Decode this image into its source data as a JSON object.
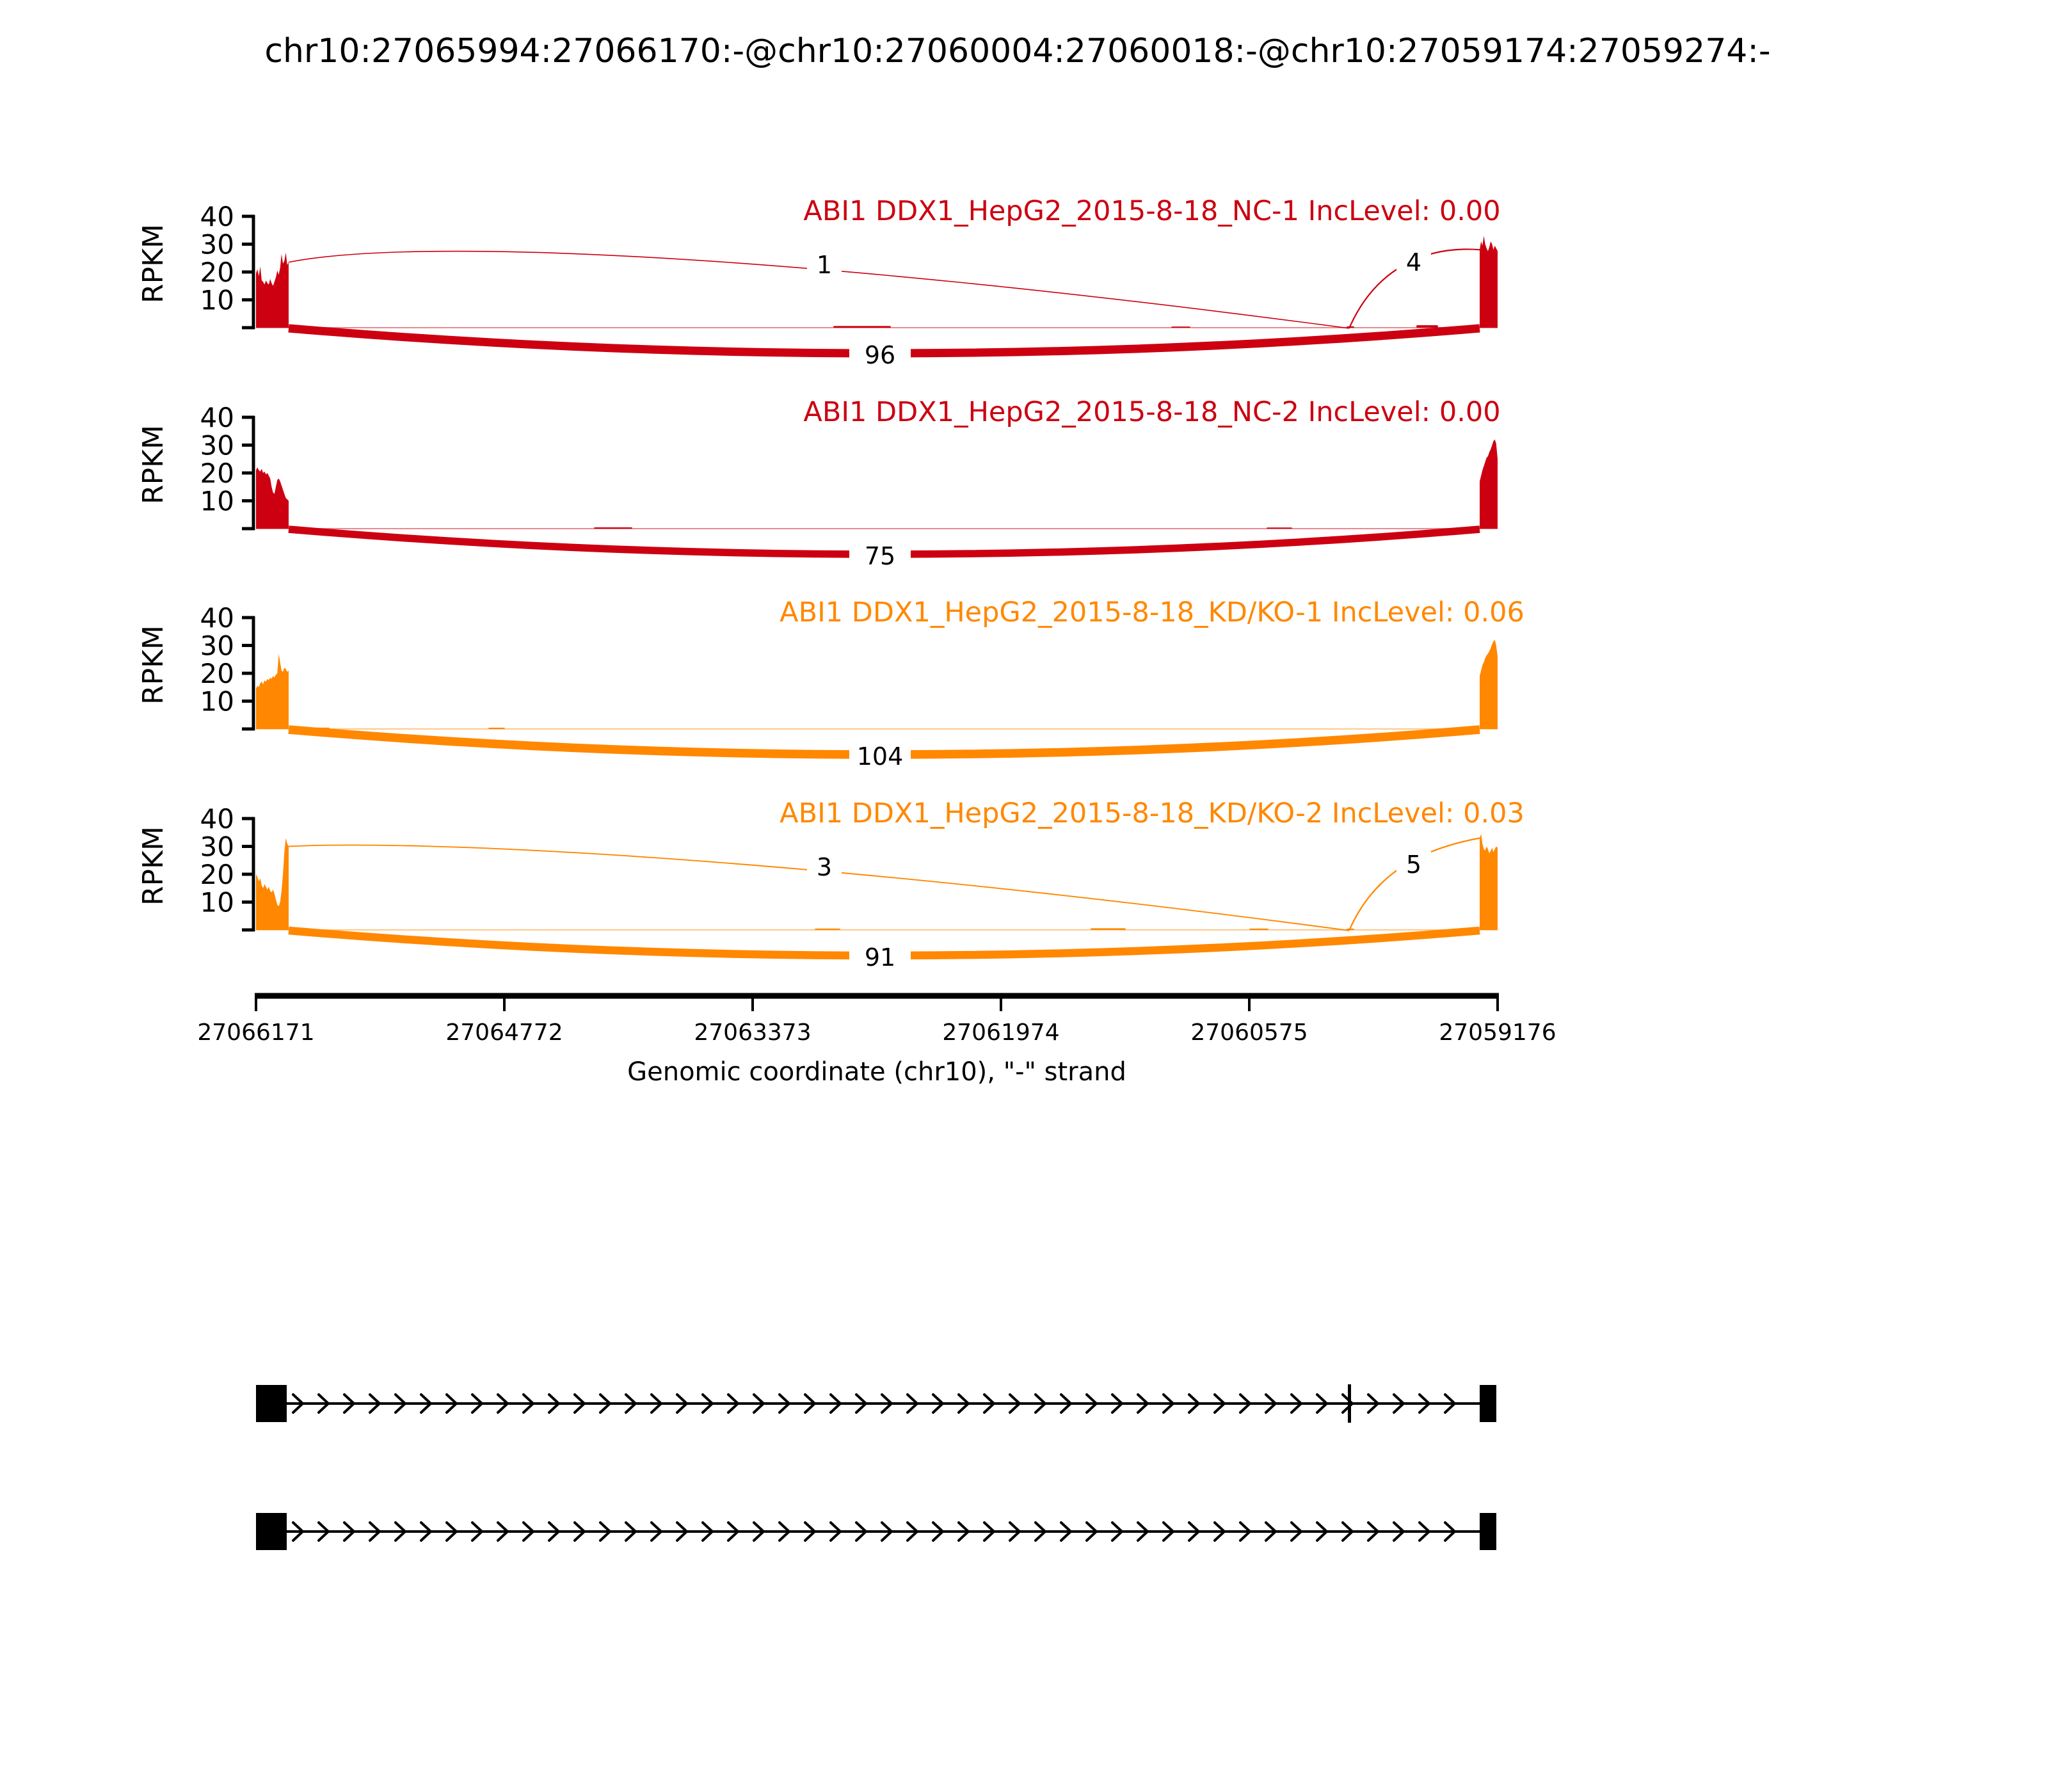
{
  "title": "chr10:27065994:27066170:-@chr10:27060004:27060018:-@chr10:27059174:27059274:-",
  "colors": {
    "red": "#CC0011",
    "orange": "#FF8800",
    "black": "#000000"
  },
  "y_axis": {
    "label": "RPKM",
    "ticks": [
      "10",
      "20",
      "30",
      "40"
    ],
    "max": 40
  },
  "x_axis": {
    "label": "Genomic coordinate (chr10), \"-\" strand",
    "ticks": [
      "27066171",
      "27064772",
      "27063373",
      "27061974",
      "27060575",
      "27059176"
    ]
  },
  "chart_data": {
    "type": "area",
    "subtype": "sashimi-splice-junction-plot",
    "region": "chr10:27066171-27059176 minus strand",
    "event_exons": {
      "upstream_exon": "chr10:27065994-27066170",
      "target_exon": "chr10:27060004-27060018",
      "downstream_exon": "chr10:27059174-27059274"
    },
    "ylim": [
      0,
      40
    ],
    "tracks": [
      {
        "label": "ABI1 DDX1_HepG2_2015-8-18_NC-1 IncLevel: 0.00",
        "sample": "ABI1 DDX1_HepG2_2015-8-18_NC-1",
        "inc_level": "0.00",
        "color_key": "red",
        "left_exon_profile": [
          19.5,
          21,
          18.5,
          22,
          17,
          16.5,
          15.5,
          17,
          16,
          15.5,
          17.5,
          16,
          15,
          16.5,
          18,
          20.5,
          19,
          21.5,
          26.5,
          23,
          24,
          27,
          22.5,
          23.5
        ],
        "right_exon_profile": [
          28,
          31,
          29.5,
          33,
          30,
          28.5,
          27.5,
          29,
          31,
          30,
          28,
          29.5,
          28.5,
          27.5
        ],
        "intron_bumps": [
          {
            "x": 1302,
            "w": 90,
            "h": 0.6
          },
          {
            "x": 1830,
            "w": 30,
            "h": 0.4
          },
          {
            "x": 2104,
            "w": 12,
            "h": 0.5
          },
          {
            "x": 2213,
            "w": 34,
            "h": 0.9
          }
        ],
        "junctions": [
          {
            "type": "inc1",
            "count": "1",
            "lw": 1.6
          },
          {
            "type": "inc2",
            "count": "4",
            "lw": 2.2
          },
          {
            "type": "skip",
            "count": "96",
            "lw": 13
          }
        ]
      },
      {
        "label": "ABI1 DDX1_HepG2_2015-8-18_NC-2 IncLevel: 0.00",
        "sample": "ABI1 DDX1_HepG2_2015-8-18_NC-2",
        "inc_level": "0.00",
        "color_key": "red",
        "left_exon_profile": [
          21,
          22,
          21,
          20.5,
          21.5,
          20,
          20.5,
          19.5,
          20,
          19,
          18,
          15,
          13,
          12.5,
          15,
          17.5,
          18,
          17,
          15.5,
          14,
          12.5,
          11,
          10.5,
          10
        ],
        "right_exon_profile": [
          17,
          19,
          21,
          22.5,
          24,
          25.5,
          26,
          27.5,
          28.5,
          30,
          31.5,
          32,
          30.5,
          25
        ],
        "intron_bumps": [
          {
            "x": 928,
            "w": 60,
            "h": 0.45
          },
          {
            "x": 1979,
            "w": 40,
            "h": 0.4
          }
        ],
        "junctions": [
          {
            "type": "skip",
            "count": "75",
            "lw": 11.5
          }
        ]
      },
      {
        "label": "ABI1 DDX1_HepG2_2015-8-18_KD/KO-1 IncLevel: 0.06",
        "sample": "ABI1 DDX1_HepG2_2015-8-18_KD/KO-1",
        "inc_level": "0.06",
        "color_key": "orange",
        "left_exon_profile": [
          14.5,
          15.5,
          15,
          16.5,
          17,
          16,
          17.5,
          17,
          18,
          17.5,
          18.5,
          18,
          19,
          18.5,
          19.5,
          20,
          27,
          24,
          21,
          20.5,
          22,
          21.5,
          20.5,
          21
        ],
        "right_exon_profile": [
          19,
          21,
          23,
          24,
          25.5,
          26.5,
          27,
          28,
          29,
          30.5,
          31.5,
          32,
          30,
          26
        ],
        "intron_bumps": [
          {
            "x": 491,
            "w": 24,
            "h": 0.5
          },
          {
            "x": 763,
            "w": 26,
            "h": 0.45
          }
        ],
        "junctions": [
          {
            "type": "skip",
            "count": "104",
            "lw": 13.5
          }
        ]
      },
      {
        "label": "ABI1 DDX1_HepG2_2015-8-18_KD/KO-2 IncLevel: 0.03",
        "sample": "ABI1 DDX1_HepG2_2015-8-18_KD/KO-2",
        "inc_level": "0.03",
        "color_key": "orange",
        "left_exon_profile": [
          20,
          19,
          17.5,
          18.5,
          16,
          15,
          16.5,
          15.5,
          14.5,
          15.5,
          14,
          13.5,
          14.5,
          13,
          11,
          9,
          8.5,
          10,
          14,
          20,
          28,
          33,
          31,
          30
        ],
        "right_exon_profile": [
          33,
          34.5,
          31,
          29,
          28.5,
          30,
          29,
          27.5,
          28.5,
          29.5,
          28,
          29,
          30,
          29.5
        ],
        "intron_bumps": [
          {
            "x": 1273,
            "w": 40,
            "h": 0.5
          },
          {
            "x": 1704,
            "w": 55,
            "h": 0.6
          },
          {
            "x": 1952,
            "w": 30,
            "h": 0.5
          },
          {
            "x": 2104,
            "w": 12,
            "h": 0.5
          }
        ],
        "junctions": [
          {
            "type": "inc1",
            "count": "3",
            "lw": 1.9
          },
          {
            "type": "inc2",
            "count": "5",
            "lw": 2.3
          },
          {
            "type": "skip",
            "count": "91",
            "lw": 12.5
          }
        ]
      }
    ],
    "transcripts": [
      {
        "name": "isoform-with-target-exon",
        "mid_exon_tick": true
      },
      {
        "name": "isoform-skipping-target-exon",
        "mid_exon_tick": false
      }
    ]
  }
}
